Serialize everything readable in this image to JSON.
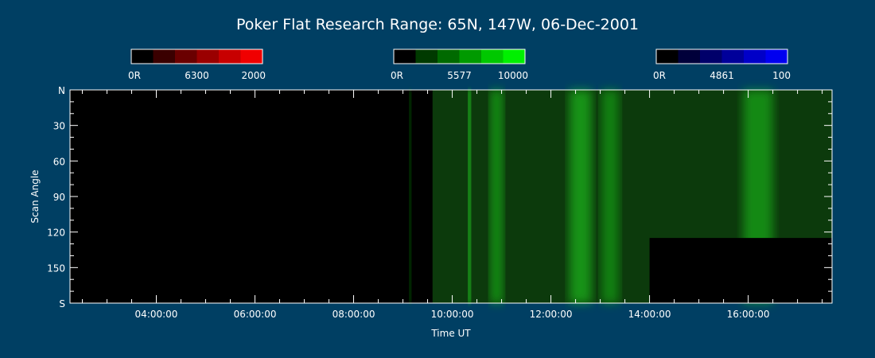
{
  "chart_data": {
    "type": "heatmap",
    "title": "Poker Flat Research Range: 65N, 147W, 06-Dec-2001",
    "xlabel": "Time UT",
    "ylabel": "Scan Angle",
    "x_range_hours": [
      2.25,
      17.7
    ],
    "x_ticks": [
      {
        "hour": 4,
        "label": "04:00:00"
      },
      {
        "hour": 6,
        "label": "06:00:00"
      },
      {
        "hour": 8,
        "label": "08:00:00"
      },
      {
        "hour": 10,
        "label": "10:00:00"
      },
      {
        "hour": 12,
        "label": "12:00:00"
      },
      {
        "hour": 14,
        "label": "14:00:00"
      },
      {
        "hour": 16,
        "label": "16:00:00"
      }
    ],
    "y_range": [
      0,
      180
    ],
    "y_ticks": [
      {
        "value": 0,
        "label": "N"
      },
      {
        "value": 30,
        "label": "30"
      },
      {
        "value": 60,
        "label": "60"
      },
      {
        "value": 90,
        "label": "90"
      },
      {
        "value": 120,
        "label": "120"
      },
      {
        "value": 150,
        "label": "150"
      },
      {
        "value": 180,
        "label": "S"
      }
    ],
    "colorbars": [
      {
        "wavelength": "6300",
        "min_label": "0R",
        "max_label": "2000",
        "colors": [
          "#000000",
          "#3a0000",
          "#6a0000",
          "#9a0000",
          "#c80000",
          "#f00000"
        ]
      },
      {
        "wavelength": "5577",
        "min_label": "0R",
        "max_label": "10000",
        "colors": [
          "#000000",
          "#003a00",
          "#006a00",
          "#009a00",
          "#00c800",
          "#00f000"
        ]
      },
      {
        "wavelength": "4861",
        "min_label": "0R",
        "max_label": "100",
        "colors": [
          "#000000",
          "#00003a",
          "#00006a",
          "#00009a",
          "#0000c8",
          "#0000f0"
        ]
      }
    ],
    "data_start_hour": 9.6,
    "no_data_region": {
      "start_hour": 14.0,
      "end_hour": 17.7,
      "angle_from": 125,
      "angle_to": 180
    },
    "emission_features": [
      {
        "hour": 9.15,
        "intensity": 0.35,
        "width_h": 0.03
      },
      {
        "hour": 10.35,
        "intensity": 0.95,
        "width_h": 0.05
      },
      {
        "hour": 10.9,
        "intensity": 0.75,
        "width_h": 0.25
      },
      {
        "hour": 12.6,
        "intensity": 0.8,
        "width_h": 0.45
      },
      {
        "hour": 13.2,
        "intensity": 0.6,
        "width_h": 0.35
      },
      {
        "hour": 16.2,
        "intensity": 0.7,
        "width_h": 0.6
      }
    ]
  }
}
